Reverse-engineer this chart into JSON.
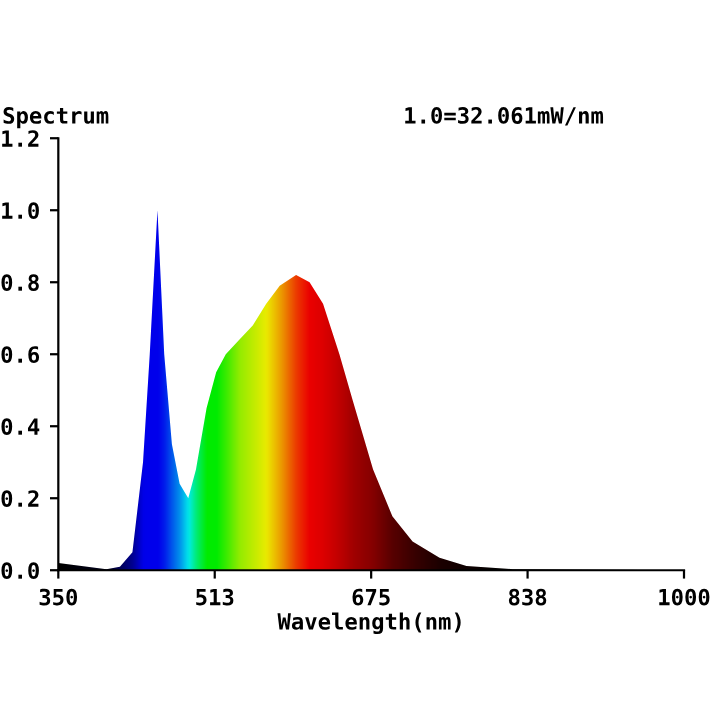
{
  "chart_data": {
    "type": "area",
    "title": "Spectrum",
    "xlabel": "Wavelength(nm)",
    "annotations": [
      "1.0=32.061mW/nm"
    ],
    "x": [
      350,
      400,
      414,
      427,
      438,
      445,
      453,
      460,
      468,
      476,
      485,
      493,
      504,
      514,
      524,
      538,
      552,
      566,
      580,
      597,
      611,
      625,
      642,
      656,
      677,
      697,
      718,
      746,
      774,
      822,
      1000
    ],
    "series": [
      {
        "color": "#000000",
        "values": [
          0.02,
          0.003,
          0.01,
          0.05,
          0.3,
          0.6,
          1.0,
          0.6,
          0.35,
          0.24,
          0.2,
          0.28,
          0.45,
          0.55,
          0.6,
          0.64,
          0.68,
          0.74,
          0.79,
          0.82,
          0.8,
          0.74,
          0.6,
          0.47,
          0.28,
          0.15,
          0.08,
          0.035,
          0.012,
          0.003,
          0.0
        ],
        "colors": [
          "#000000",
          "#000020",
          "#000060",
          "#0000a0",
          "#0000ff",
          "#0000ff",
          "#0000ff",
          "#0020ff",
          "#0060ff",
          "#00a0ff",
          "#00ffff",
          "#00ff80",
          "#00ff00",
          "#00ff00",
          "#40ff00",
          "#a0ff00",
          "#d0ff00",
          "#ffff00",
          "#ffb000",
          "#ff4000",
          "#ff0000",
          "#f00000",
          "#d00000",
          "#b00000",
          "#900000",
          "#600000",
          "#400000",
          "#200000",
          "#100000",
          "#000000",
          "#000000"
        ]
      }
    ],
    "xlim": [
      350,
      1000
    ],
    "xticks": [
      350,
      {
        "value": 512.5,
        "label": "513"
      },
      675,
      {
        "value": 837.5,
        "label": "838"
      },
      1000
    ],
    "ylim": [
      0,
      1.2
    ],
    "yticks": [
      {
        "value": 0,
        "label": "0.0"
      },
      {
        "value": 0.2,
        "label": "0.2"
      },
      {
        "value": 0.4,
        "label": "0.4"
      },
      {
        "value": 0.6,
        "label": "0.6"
      },
      {
        "value": 0.8,
        "label": "0.8"
      },
      {
        "value": 1.0,
        "label": "1.0"
      },
      {
        "value": 1.2,
        "label": "1.2"
      }
    ],
    "grid": false,
    "legend": false
  }
}
